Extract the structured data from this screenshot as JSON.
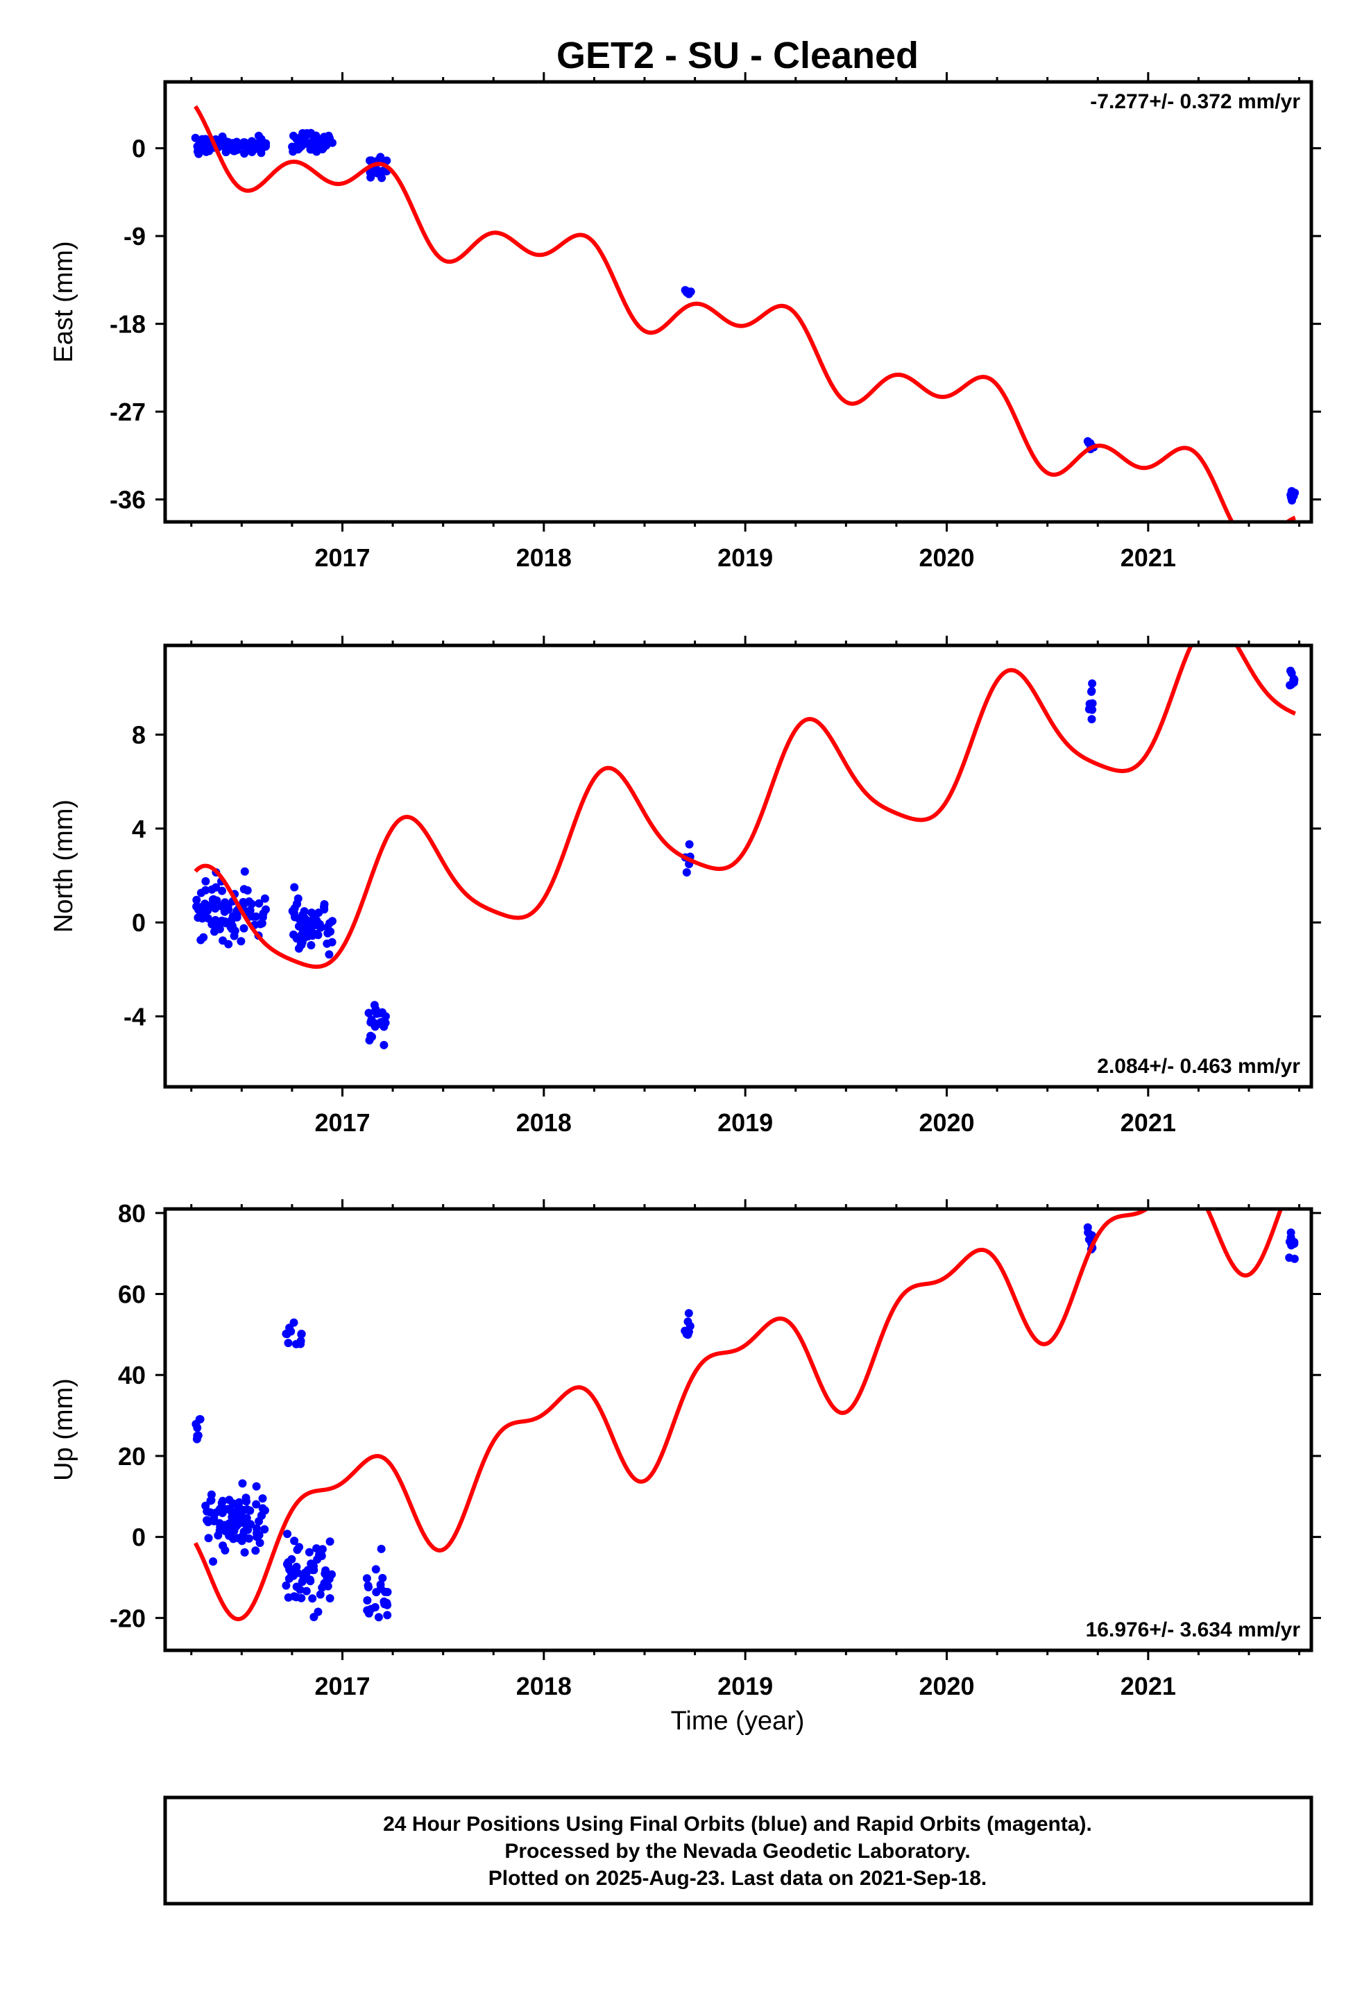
{
  "title": "GET2  - SU - Cleaned",
  "xlabel": "Time (year)",
  "footer": {
    "line1": "24 Hour Positions Using Final Orbits (blue) and Rapid Orbits (magenta).",
    "line2": "Processed by the Nevada Geodetic Laboratory.",
    "line3": "Plotted on 2025-Aug-23. Last data on 2021-Sep-18."
  },
  "colors": {
    "data": "#0000ff",
    "model": "#ff0000",
    "frame": "#000000"
  },
  "chart_data": [
    {
      "type": "scatter",
      "name": "east",
      "ylabel": "East (mm)",
      "rate": "-7.277+/- 0.372 mm/yr",
      "rate_position": "top-right",
      "xlim": [
        2016.12,
        2021.81
      ],
      "ylim": [
        -38.3,
        6.8
      ],
      "yticks": [
        0,
        -9,
        -18,
        -27,
        -36
      ],
      "xticks": [
        2017,
        2018,
        2019,
        2020,
        2021
      ],
      "trend": {
        "t0": 2016.27,
        "v0": 1.5,
        "rate": -7.277
      },
      "seasonal": {
        "annual_sin": 1.3,
        "annual_cos": 2.1,
        "semiannual_sin": 0.3,
        "semiannual_cos": -1.9
      },
      "segments": [
        {
          "start": 2016.27,
          "end": 2016.62,
          "center": 0.3,
          "spread": 2.6,
          "n": 95
        },
        {
          "start": 2016.75,
          "end": 2016.95,
          "center": 0.6,
          "spread": 2.8,
          "n": 60
        },
        {
          "start": 2017.13,
          "end": 2017.22,
          "center": -2.2,
          "spread": 3.2,
          "n": 22
        },
        {
          "start": 2018.7,
          "end": 2018.73,
          "center": -14.7,
          "spread": 0.9,
          "n": 7
        },
        {
          "start": 2020.7,
          "end": 2020.73,
          "center": -30.4,
          "spread": 1.6,
          "n": 6
        },
        {
          "start": 2021.7,
          "end": 2021.73,
          "center": -35.6,
          "spread": 2.0,
          "n": 8
        }
      ]
    },
    {
      "type": "scatter",
      "name": "north",
      "ylabel": "North (mm)",
      "rate": "2.084+/- 0.463 mm/yr",
      "rate_position": "bottom-right",
      "xlim": [
        2016.12,
        2021.81
      ],
      "ylim": [
        -7.0,
        11.8
      ],
      "yticks": [
        8,
        4,
        0,
        -4
      ],
      "xticks": [
        2017,
        2018,
        2019,
        2020,
        2021
      ],
      "trend": {
        "t0": 2016.27,
        "v0": -0.8,
        "rate": 2.084
      },
      "seasonal": {
        "annual_sin": 2.3,
        "annual_cos": -1.3,
        "semiannual_sin": -0.2,
        "semiannual_cos": -0.5
      },
      "segments": [
        {
          "start": 2016.27,
          "end": 2016.62,
          "center": 0.6,
          "spread": 4.0,
          "n": 95
        },
        {
          "start": 2016.75,
          "end": 2016.95,
          "center": 0.0,
          "spread": 3.5,
          "n": 60
        },
        {
          "start": 2017.13,
          "end": 2017.22,
          "center": -4.4,
          "spread": 2.6,
          "n": 22
        },
        {
          "start": 2018.7,
          "end": 2018.73,
          "center": 2.6,
          "spread": 1.7,
          "n": 6
        },
        {
          "start": 2020.7,
          "end": 2020.73,
          "center": 9.0,
          "spread": 3.2,
          "n": 8
        },
        {
          "start": 2021.7,
          "end": 2021.73,
          "center": 10.2,
          "spread": 2.8,
          "n": 8
        }
      ]
    },
    {
      "type": "scatter",
      "name": "up",
      "ylabel": "Up (mm)",
      "rate": "16.976+/- 3.634 mm/yr",
      "rate_position": "bottom-right",
      "xlim": [
        2016.12,
        2021.81
      ],
      "ylim": [
        -28,
        81
      ],
      "yticks": [
        80,
        60,
        40,
        20,
        0,
        -20
      ],
      "xticks": [
        2017,
        2018,
        2019,
        2020,
        2021
      ],
      "trend": {
        "t0": 2016.27,
        "v0": -6.0,
        "rate": 16.976
      },
      "seasonal": {
        "annual_sin": 1.0,
        "annual_cos": 12.5,
        "semiannual_sin": 1.0,
        "semiannual_cos": -5.5
      },
      "segments": [
        {
          "start": 2016.27,
          "end": 2016.3,
          "center": 26.0,
          "spread": 9.0,
          "n": 7
        },
        {
          "start": 2016.32,
          "end": 2016.62,
          "center": 4.0,
          "spread": 24.0,
          "n": 85
        },
        {
          "start": 2016.72,
          "end": 2016.8,
          "center": 51.0,
          "spread": 10.0,
          "n": 12
        },
        {
          "start": 2016.72,
          "end": 2016.95,
          "center": -9.0,
          "spread": 28.0,
          "n": 55
        },
        {
          "start": 2017.12,
          "end": 2017.23,
          "center": -13.0,
          "spread": 26.0,
          "n": 22
        },
        {
          "start": 2018.7,
          "end": 2018.73,
          "center": 51.0,
          "spread": 11.0,
          "n": 7
        },
        {
          "start": 2020.7,
          "end": 2020.73,
          "center": 72.0,
          "spread": 14.0,
          "n": 8
        },
        {
          "start": 2021.7,
          "end": 2021.73,
          "center": 72.0,
          "spread": 10.0,
          "n": 8
        }
      ]
    }
  ]
}
